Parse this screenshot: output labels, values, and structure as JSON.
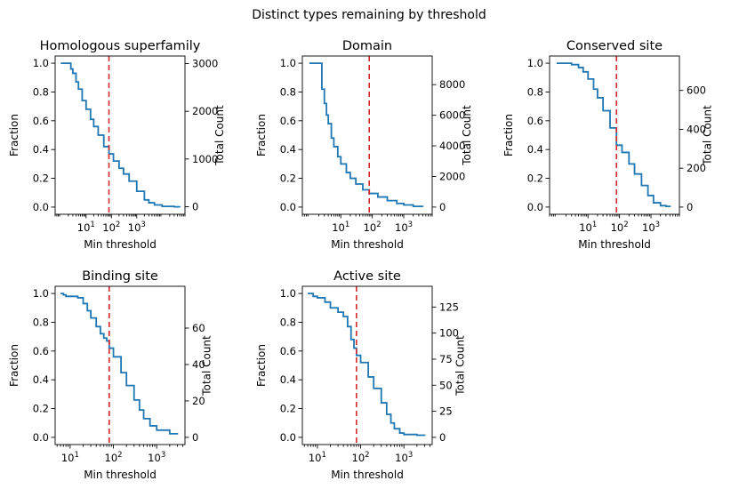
{
  "figure": {
    "title": "Distinct types remaining by threshold"
  },
  "colors": {
    "curve": "#1f77b4",
    "threshold": "#d62728"
  },
  "chart_data": [
    {
      "type": "line",
      "title": "Homologous superfamily",
      "xlabel": "Min threshold",
      "ylabel": "Fraction",
      "y2label": "Total Count",
      "xscale": "log",
      "xlim": [
        0.6,
        80000
      ],
      "ylim": [
        -0.05,
        1.05
      ],
      "y2lim": [
        -158,
        3159
      ],
      "xticks": [
        {
          "v": 10,
          "label": "10^1"
        },
        {
          "v": 100,
          "label": "10^2"
        },
        {
          "v": 1000,
          "label": "10^3"
        }
      ],
      "yticks": [
        0.0,
        0.2,
        0.4,
        0.6,
        0.8,
        1.0
      ],
      "y2ticks": [
        0,
        1000,
        2000,
        3000
      ],
      "threshold": 80,
      "x": [
        1,
        2,
        2.5,
        3,
        4,
        5,
        7,
        10,
        15,
        20,
        30,
        50,
        80,
        120,
        200,
        300,
        500,
        1000,
        2000,
        3000,
        5000,
        10000,
        30000,
        50000
      ],
      "y": [
        1.0,
        1.0,
        0.96,
        0.93,
        0.87,
        0.82,
        0.74,
        0.68,
        0.61,
        0.56,
        0.5,
        0.42,
        0.37,
        0.32,
        0.27,
        0.23,
        0.18,
        0.11,
        0.05,
        0.03,
        0.015,
        0.005,
        0.002,
        0.0
      ]
    },
    {
      "type": "line",
      "title": "Domain",
      "xlabel": "Min threshold",
      "ylabel": "Fraction",
      "y2label": "Total Count",
      "xscale": "log",
      "xlim": [
        0.6,
        8000
      ],
      "ylim": [
        -0.05,
        1.05
      ],
      "y2lim": [
        -470,
        9870
      ],
      "xticks": [
        {
          "v": 10,
          "label": "10^1"
        },
        {
          "v": 100,
          "label": "10^2"
        },
        {
          "v": 1000,
          "label": "10^3"
        }
      ],
      "yticks": [
        0.0,
        0.2,
        0.4,
        0.6,
        0.8,
        1.0
      ],
      "y2ticks": [
        0,
        2000,
        4000,
        6000,
        8000
      ],
      "threshold": 80,
      "x": [
        1,
        2,
        2.5,
        3,
        3.5,
        4,
        5,
        6,
        8,
        10,
        15,
        20,
        30,
        50,
        80,
        150,
        300,
        600,
        1000,
        2000,
        4000
      ],
      "y": [
        1.0,
        1.0,
        0.82,
        0.72,
        0.64,
        0.58,
        0.48,
        0.42,
        0.35,
        0.3,
        0.24,
        0.2,
        0.16,
        0.12,
        0.095,
        0.07,
        0.045,
        0.025,
        0.015,
        0.005,
        0.0
      ]
    },
    {
      "type": "line",
      "title": "Conserved site",
      "xlabel": "Min threshold",
      "ylabel": "Fraction",
      "y2label": "Total Count",
      "xscale": "log",
      "xlim": [
        0.6,
        8000
      ],
      "ylim": [
        -0.05,
        1.05
      ],
      "y2lim": [
        -37,
        777
      ],
      "xticks": [
        {
          "v": 10,
          "label": "10^1"
        },
        {
          "v": 100,
          "label": "10^2"
        },
        {
          "v": 1000,
          "label": "10^3"
        }
      ],
      "yticks": [
        0.0,
        0.2,
        0.4,
        0.6,
        0.8,
        1.0
      ],
      "y2ticks": [
        0,
        200,
        400,
        600
      ],
      "threshold": 80,
      "x": [
        1,
        2,
        3,
        5,
        7,
        10,
        15,
        20,
        30,
        50,
        80,
        120,
        200,
        300,
        500,
        800,
        1200,
        2000,
        3000,
        4000
      ],
      "y": [
        1.0,
        1.0,
        0.99,
        0.97,
        0.94,
        0.89,
        0.82,
        0.76,
        0.67,
        0.55,
        0.43,
        0.38,
        0.3,
        0.23,
        0.15,
        0.08,
        0.03,
        0.01,
        0.005,
        0.0
      ]
    },
    {
      "type": "line",
      "title": "Binding site",
      "xlabel": "Min threshold",
      "ylabel": "Fraction",
      "y2label": "Total Count",
      "xscale": "log",
      "xlim": [
        4.5,
        4500
      ],
      "ylim": [
        -0.05,
        1.05
      ],
      "y2lim": [
        -3.95,
        82.95
      ],
      "xticks": [
        {
          "v": 10,
          "label": "10^1"
        },
        {
          "v": 100,
          "label": "10^2"
        },
        {
          "v": 1000,
          "label": "10^3"
        }
      ],
      "yticks": [
        0.0,
        0.2,
        0.4,
        0.6,
        0.8,
        1.0
      ],
      "y2ticks": [
        0,
        20,
        40,
        60
      ],
      "threshold": 80,
      "x": [
        6,
        7,
        8,
        10,
        15,
        20,
        25,
        30,
        40,
        50,
        60,
        70,
        80,
        100,
        150,
        200,
        300,
        400,
        500,
        700,
        1000,
        2000,
        3000
      ],
      "y": [
        1.0,
        0.99,
        0.98,
        0.98,
        0.97,
        0.93,
        0.88,
        0.83,
        0.77,
        0.72,
        0.69,
        0.67,
        0.62,
        0.56,
        0.45,
        0.36,
        0.26,
        0.19,
        0.13,
        0.08,
        0.05,
        0.025,
        0.02
      ]
    },
    {
      "type": "line",
      "title": "Active site",
      "xlabel": "Min threshold",
      "ylabel": "Fraction",
      "y2label": "Total Count",
      "xscale": "log",
      "xlim": [
        4.5,
        4500
      ],
      "ylim": [
        -0.05,
        1.05
      ],
      "y2lim": [
        -6.9,
        144.9
      ],
      "xticks": [
        {
          "v": 10,
          "label": "10^1"
        },
        {
          "v": 100,
          "label": "10^2"
        },
        {
          "v": 1000,
          "label": "10^3"
        }
      ],
      "yticks": [
        0.0,
        0.2,
        0.4,
        0.6,
        0.8,
        1.0
      ],
      "y2ticks": [
        0,
        25,
        50,
        75,
        100,
        125
      ],
      "threshold": 80,
      "x": [
        6,
        8,
        10,
        15,
        20,
        30,
        40,
        50,
        60,
        70,
        80,
        100,
        150,
        200,
        300,
        400,
        500,
        600,
        800,
        1000,
        2000,
        3000
      ],
      "y": [
        1.0,
        0.98,
        0.97,
        0.94,
        0.9,
        0.87,
        0.84,
        0.77,
        0.68,
        0.62,
        0.57,
        0.52,
        0.42,
        0.34,
        0.24,
        0.16,
        0.1,
        0.06,
        0.03,
        0.02,
        0.015,
        0.01
      ]
    }
  ]
}
